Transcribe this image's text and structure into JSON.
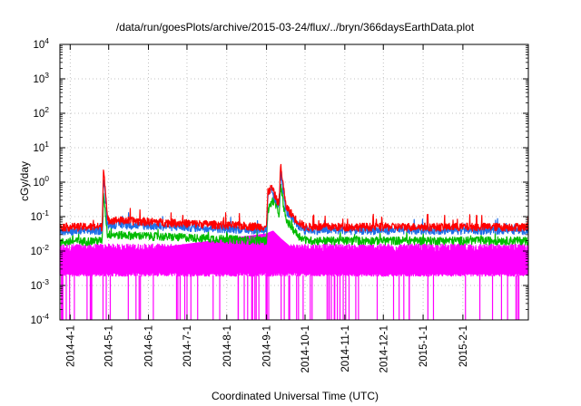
{
  "chart_data": {
    "type": "line",
    "title": "/data/run/goesPlots/archive/2015-03-24/flux/../bryn/366daysEarthData.plot",
    "xlabel": "Coordinated Universal Time (UTC)",
    "ylabel": "cGy/day",
    "yscale": "log",
    "ylim": [
      0.0001,
      10000
    ],
    "xlim": [
      "2014-03-24",
      "2015-03-24"
    ],
    "grid": true,
    "legend": "none",
    "x_ticks": [
      "2014-4-1",
      "2014-5-1",
      "2014-6-1",
      "2014-7-1",
      "2014-8-1",
      "2014-9-1",
      "2014-10-1",
      "2014-11-1",
      "2014-12-1",
      "2015-1-1",
      "2015-2-1"
    ],
    "y_ticks": [
      {
        "value": 0.0001,
        "base": "10",
        "exp": "-4"
      },
      {
        "value": 0.001,
        "base": "10",
        "exp": "-3"
      },
      {
        "value": 0.01,
        "base": "10",
        "exp": "-2"
      },
      {
        "value": 0.1,
        "base": "10",
        "exp": "-1"
      },
      {
        "value": 1,
        "base": "10",
        "exp": "0"
      },
      {
        "value": 10,
        "base": "10",
        "exp": "1"
      },
      {
        "value": 100,
        "base": "10",
        "exp": "2"
      },
      {
        "value": 1000,
        "base": "10",
        "exp": "3"
      },
      {
        "value": 10000,
        "base": "10",
        "exp": "4"
      }
    ],
    "series": [
      {
        "color": "#ff00ff",
        "baseline": 0.006,
        "peaks": [
          [
            "2014-03-24",
            0.006
          ],
          [
            "2014-04-27",
            0.006
          ],
          [
            "2014-09-01",
            0.025
          ],
          [
            "2014-09-06",
            0.03
          ],
          [
            "2014-09-12",
            0.018
          ],
          [
            "2014-09-20",
            0.01
          ],
          [
            "2014-10-01",
            0.006
          ],
          [
            "2015-03-24",
            0.006
          ]
        ],
        "range_low": 0.002,
        "range_high": 0.015,
        "dips_to": 0.0001
      },
      {
        "color": "#00bb00",
        "baseline": 0.02,
        "peaks": [
          [
            "2014-03-24",
            0.018
          ],
          [
            "2014-04-26",
            0.02
          ],
          [
            "2014-04-27",
            0.5
          ],
          [
            "2014-04-30",
            0.03
          ],
          [
            "2014-09-01",
            0.02
          ],
          [
            "2014-09-02",
            0.15
          ],
          [
            "2014-09-06",
            0.3
          ],
          [
            "2014-09-11",
            0.12
          ],
          [
            "2014-09-12",
            0.8
          ],
          [
            "2014-09-16",
            0.08
          ],
          [
            "2014-09-25",
            0.03
          ],
          [
            "2014-10-01",
            0.02
          ],
          [
            "2015-03-24",
            0.02
          ]
        ]
      },
      {
        "color": "#1e6fe8",
        "baseline": 0.04,
        "peaks": [
          [
            "2014-03-24",
            0.035
          ],
          [
            "2014-04-26",
            0.04
          ],
          [
            "2014-04-27",
            1.5
          ],
          [
            "2014-04-30",
            0.06
          ],
          [
            "2014-09-01",
            0.04
          ],
          [
            "2014-09-02",
            0.35
          ],
          [
            "2014-09-05",
            0.55
          ],
          [
            "2014-09-10",
            0.2
          ],
          [
            "2014-09-11",
            0.3
          ],
          [
            "2014-09-12",
            2.0
          ],
          [
            "2014-09-16",
            0.15
          ],
          [
            "2014-09-24",
            0.06
          ],
          [
            "2014-10-01",
            0.04
          ],
          [
            "2015-03-24",
            0.04
          ]
        ]
      },
      {
        "color": "#ff0000",
        "baseline": 0.05,
        "peaks": [
          [
            "2014-03-24",
            0.05
          ],
          [
            "2014-04-26",
            0.05
          ],
          [
            "2014-04-27",
            3.3
          ],
          [
            "2014-04-30",
            0.08
          ],
          [
            "2014-09-01",
            0.05
          ],
          [
            "2014-09-02",
            0.5
          ],
          [
            "2014-09-05",
            0.7
          ],
          [
            "2014-09-10",
            0.25
          ],
          [
            "2014-09-11",
            0.35
          ],
          [
            "2014-09-12",
            3.2
          ],
          [
            "2014-09-16",
            0.2
          ],
          [
            "2014-09-24",
            0.08
          ],
          [
            "2014-10-01",
            0.05
          ],
          [
            "2015-03-24",
            0.05
          ]
        ]
      }
    ]
  }
}
